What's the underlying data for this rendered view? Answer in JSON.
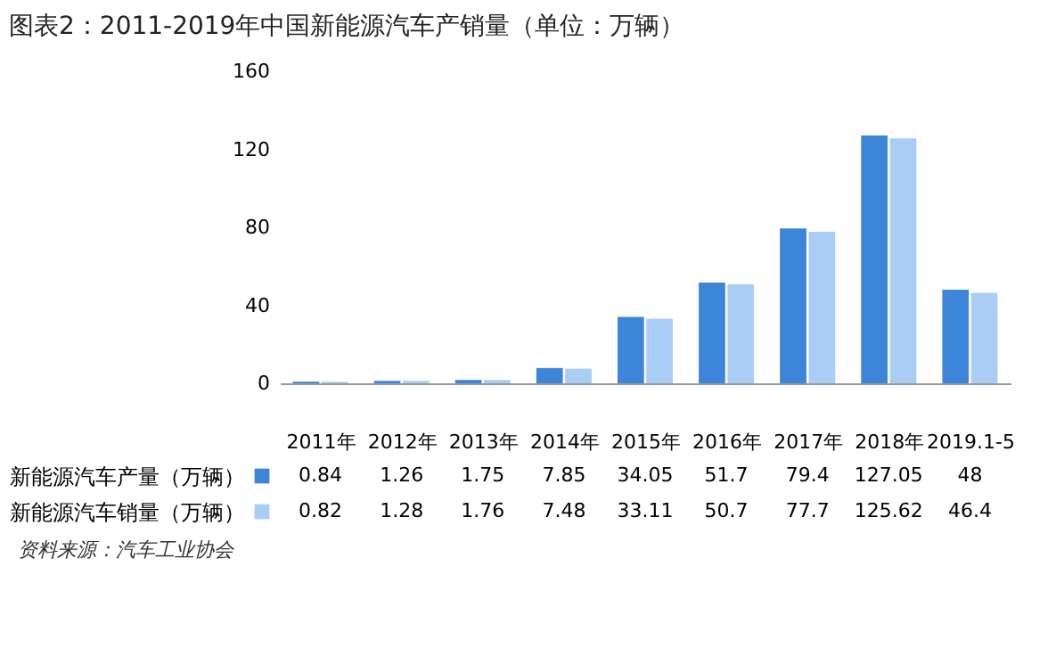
{
  "chart_data": {
    "type": "bar",
    "title": "图表2：2011-2019年中国新能源汽车产销量（单位：万辆）",
    "categories": [
      "2011年",
      "2012年",
      "2013年",
      "2014年",
      "2015年",
      "2016年",
      "2017年",
      "2018年",
      "2019.1-5"
    ],
    "series": [
      {
        "name": "新能源汽车产量（万辆）",
        "color": "#3d85d8",
        "values": [
          0.84,
          1.26,
          1.75,
          7.85,
          34.05,
          51.7,
          79.4,
          127.05,
          48
        ]
      },
      {
        "name": "新能源汽车销量（万辆）",
        "color": "#a9cdf4",
        "values": [
          0.82,
          1.28,
          1.76,
          7.48,
          33.11,
          50.7,
          77.7,
          125.62,
          46.4
        ]
      }
    ],
    "ylim": [
      0,
      160
    ],
    "yticks": [
      0,
      40,
      80,
      120,
      160
    ],
    "data_labels": true,
    "legend": "bottom",
    "annotations": [
      "资料来源：汽车工业协会"
    ]
  }
}
